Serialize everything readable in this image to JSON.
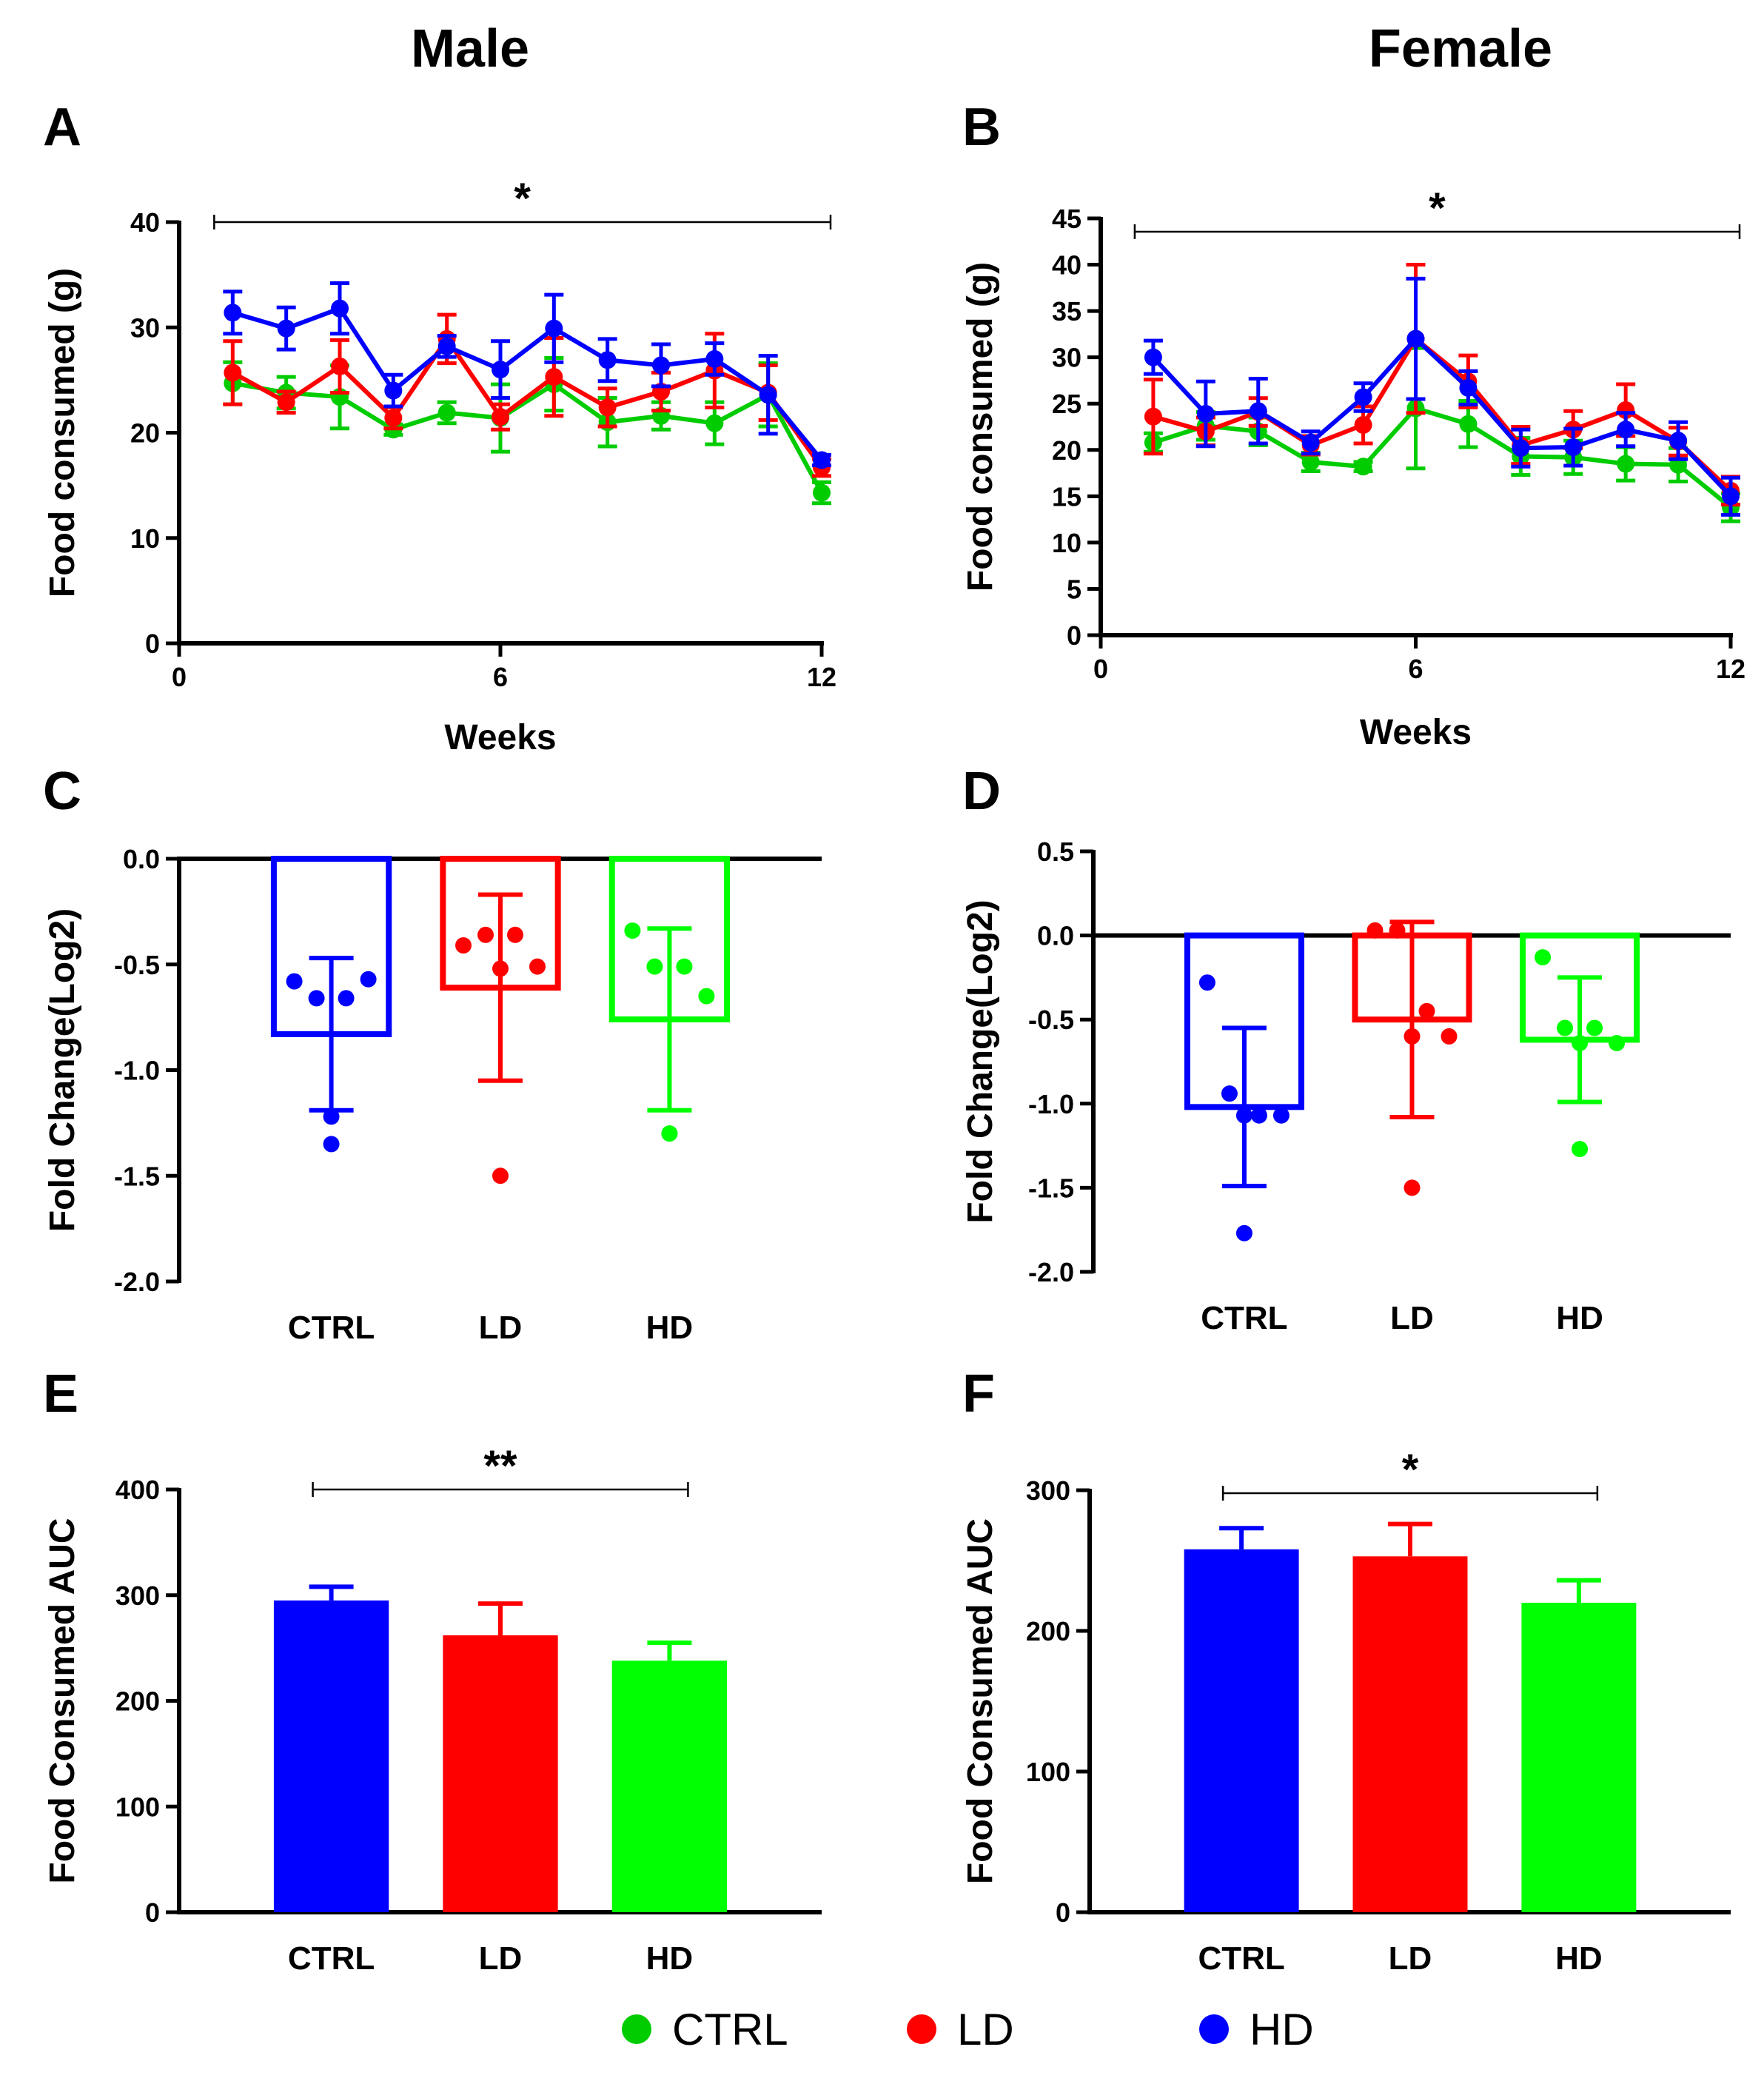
{
  "column_titles": [
    "Male",
    "Female"
  ],
  "legend": [
    {
      "label": "CTRL",
      "color": "#00cc00"
    },
    {
      "label": "LD",
      "color": "#ff0000"
    },
    {
      "label": "HD",
      "color": "#0000ff"
    }
  ],
  "chart_data": [
    {
      "panel": "A",
      "type": "line",
      "column": "Male",
      "xlabel": "Weeks",
      "ylabel": "Food consumed (g)",
      "xlim": [
        0,
        12
      ],
      "ylim": [
        0,
        40
      ],
      "xticks": [
        0,
        6,
        12
      ],
      "yticks": [
        0,
        10,
        20,
        30,
        40
      ],
      "x": [
        1,
        2,
        3,
        4,
        5,
        6,
        7,
        8,
        9,
        10,
        11,
        12
      ],
      "significance": {
        "label": "*",
        "from": 1,
        "to": 12
      },
      "series": [
        {
          "name": "CTRL",
          "color": "#00cc00",
          "values": [
            24.7,
            23.8,
            23.4,
            20.3,
            21.9,
            21.4,
            24.6,
            21.0,
            21.6,
            20.9,
            23.6,
            14.3
          ],
          "errors": [
            2.0,
            1.5,
            3.0,
            0.5,
            1.0,
            3.2,
            2.5,
            2.3,
            1.3,
            2.0,
            3.0,
            1.0
          ]
        },
        {
          "name": "LD",
          "color": "#ff0000",
          "values": [
            25.7,
            22.9,
            26.3,
            21.4,
            28.9,
            21.5,
            25.3,
            22.4,
            23.9,
            25.9,
            23.8,
            16.7
          ],
          "errors": [
            3.0,
            1.0,
            2.5,
            1.0,
            2.3,
            1.2,
            3.7,
            1.8,
            1.8,
            3.5,
            2.6,
            0.8
          ]
        },
        {
          "name": "HD",
          "color": "#0000ff",
          "values": [
            31.4,
            29.9,
            31.8,
            24.0,
            28.2,
            26.0,
            29.9,
            26.9,
            26.4,
            27.0,
            23.6,
            17.4
          ],
          "errors": [
            2.0,
            2.0,
            2.4,
            1.5,
            1.0,
            2.7,
            3.2,
            2.0,
            2.0,
            1.5,
            3.7,
            0.5
          ]
        }
      ]
    },
    {
      "panel": "B",
      "type": "line",
      "column": "Female",
      "xlabel": "Weeks",
      "ylabel": "Food consumed (g)",
      "xlim": [
        0,
        12
      ],
      "ylim": [
        0,
        45
      ],
      "xticks": [
        0,
        6,
        12
      ],
      "yticks": [
        0,
        5,
        10,
        15,
        20,
        25,
        30,
        35,
        40,
        45
      ],
      "x": [
        1,
        2,
        3,
        4,
        5,
        6,
        7,
        8,
        9,
        10,
        11,
        12
      ],
      "significance": {
        "label": "*",
        "from": 1,
        "to": 12
      },
      "series": [
        {
          "name": "CTRL",
          "color": "#00cc00",
          "values": [
            20.8,
            22.6,
            22.0,
            18.7,
            18.2,
            24.5,
            22.8,
            19.3,
            19.2,
            18.5,
            18.4,
            13.8
          ],
          "errors": [
            1.0,
            1.5,
            1.5,
            1.0,
            0.5,
            6.5,
            2.5,
            2.0,
            1.8,
            1.8,
            1.8,
            1.5
          ]
        },
        {
          "name": "LD",
          "color": "#ff0000",
          "values": [
            23.6,
            22.0,
            24.1,
            20.5,
            22.7,
            32.0,
            27.4,
            20.5,
            22.2,
            24.3,
            20.9,
            15.6
          ],
          "errors": [
            4.0,
            1.5,
            1.5,
            1.0,
            2.0,
            8.0,
            2.8,
            2.0,
            2.0,
            2.8,
            1.5,
            1.5
          ]
        },
        {
          "name": "HD",
          "color": "#0000ff",
          "values": [
            30.0,
            23.9,
            24.2,
            20.8,
            25.7,
            32.0,
            26.7,
            20.2,
            20.3,
            22.2,
            21.0,
            15.0
          ],
          "errors": [
            1.8,
            3.5,
            3.5,
            1.2,
            1.5,
            6.5,
            1.8,
            2.0,
            2.0,
            1.8,
            2.0,
            2.0
          ]
        }
      ]
    },
    {
      "panel": "C",
      "type": "bar",
      "column": "Male",
      "xlabel": "",
      "ylabel": "Fold Change(Log2)",
      "ylim": [
        -2.0,
        0.0
      ],
      "yticks": [
        -2.0,
        -1.5,
        -1.0,
        -0.5,
        0.0
      ],
      "categories": [
        "CTRL",
        "LD",
        "HD"
      ],
      "colors": [
        "#0000ff",
        "#ff0000",
        "#00ff00"
      ],
      "values": [
        -0.83,
        -0.61,
        -0.76
      ],
      "errors": [
        0.36,
        0.44,
        0.43
      ],
      "points": [
        [
          -0.58,
          -0.66,
          -0.66,
          -0.57,
          -1.22,
          -1.35
        ],
        [
          -0.41,
          -0.36,
          -0.36,
          -0.51,
          -0.52,
          -1.5
        ],
        [
          -0.34,
          -0.51,
          -0.51,
          -0.65,
          -1.3,
          -1.3
        ]
      ]
    },
    {
      "panel": "D",
      "type": "bar",
      "column": "Female",
      "xlabel": "",
      "ylabel": "Fold Change(Log2)",
      "ylim": [
        -2.0,
        0.5
      ],
      "yticks": [
        -2.0,
        -1.5,
        -1.0,
        -0.5,
        0.0,
        0.5
      ],
      "categories": [
        "CTRL",
        "LD",
        "HD"
      ],
      "colors": [
        "#0000ff",
        "#ff0000",
        "#00ff00"
      ],
      "values": [
        -1.02,
        -0.5,
        -0.62
      ],
      "errors": [
        0.47,
        0.58,
        0.37
      ],
      "points": [
        [
          -0.28,
          -0.94,
          -1.07,
          -1.07,
          -1.07,
          -1.77
        ],
        [
          0.03,
          0.03,
          -0.45,
          -0.6,
          -0.6,
          -1.5
        ],
        [
          -0.13,
          -0.55,
          -0.55,
          -0.64,
          -0.64,
          -1.27
        ]
      ]
    },
    {
      "panel": "E",
      "type": "bar",
      "column": "Male",
      "xlabel": "",
      "ylabel": "Food Consumed AUC",
      "ylim": [
        0,
        400
      ],
      "yticks": [
        0,
        100,
        200,
        300,
        400
      ],
      "categories": [
        "CTRL",
        "LD",
        "HD"
      ],
      "colors": [
        "#0000ff",
        "#ff0000",
        "#00ff00"
      ],
      "values": [
        295,
        262,
        238
      ],
      "errors": [
        13,
        30,
        17
      ],
      "significance": {
        "label": "**",
        "from": "CTRL",
        "to": "HD"
      }
    },
    {
      "panel": "F",
      "type": "bar",
      "column": "Female",
      "xlabel": "",
      "ylabel": "Food Consumed AUC",
      "ylim": [
        0,
        300
      ],
      "yticks": [
        0,
        100,
        200,
        300
      ],
      "categories": [
        "CTRL",
        "LD",
        "HD"
      ],
      "colors": [
        "#0000ff",
        "#ff0000",
        "#00ff00"
      ],
      "values": [
        258,
        253,
        220
      ],
      "errors": [
        15,
        23,
        16
      ],
      "significance": {
        "label": "*",
        "from": "CTRL",
        "to": "HD"
      }
    }
  ]
}
